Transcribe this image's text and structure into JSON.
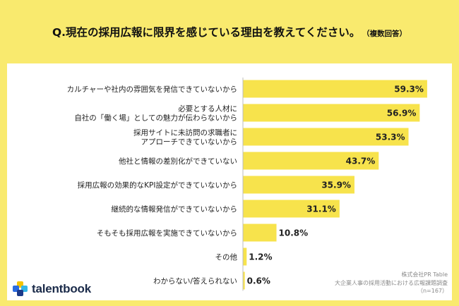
{
  "question": {
    "title": "Q.現在の採用広報に限界を感じている理由を教えてください。",
    "note": "（複数回答）"
  },
  "logo": {
    "text": "talentbook"
  },
  "source": {
    "line1": "株式会社PR Table",
    "line2": "大企業人事の採用活動における広報課題調査",
    "line3": "（n=167）"
  },
  "colors": {
    "background": "#f9ea6e",
    "bar": "#f7e34c",
    "card": "#ffffff"
  },
  "chart_data": {
    "type": "bar",
    "orientation": "horizontal",
    "unit": "%",
    "categories": [
      [
        "カルチャーや社内の雰囲気を発信できていないから"
      ],
      [
        "必要とする人材に",
        "自社の「働く場」としての魅力が伝わらないから"
      ],
      [
        "採用サイトに未訪問の求職者に",
        "アプローチできていないから"
      ],
      [
        "他社と情報の差別化ができていない"
      ],
      [
        "採用広報の効果的なKPI設定ができていないから"
      ],
      [
        "継続的な情報発信ができていないから"
      ],
      [
        "そもそも採用広報を実施できていないから"
      ],
      [
        "その他"
      ],
      [
        "わからない/答えられない"
      ]
    ],
    "values": [
      59.3,
      56.9,
      53.3,
      43.7,
      35.9,
      31.1,
      10.8,
      1.2,
      0.6
    ],
    "value_labels": [
      "59.3%",
      "56.9%",
      "53.3%",
      "43.7%",
      "35.9%",
      "31.1%",
      "10.8%",
      "1.2%",
      "0.6%"
    ],
    "xlim": [
      0,
      60
    ]
  }
}
